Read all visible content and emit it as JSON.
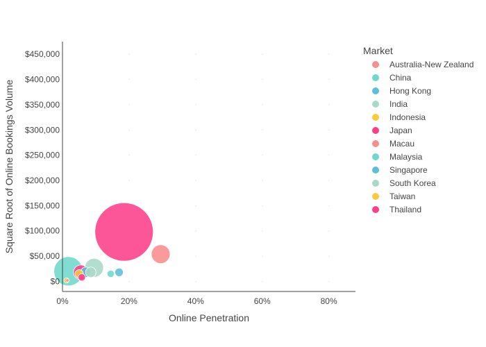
{
  "chart_data": {
    "type": "scatter",
    "subtype": "bubble",
    "title": "",
    "xlabel": "Online Penetration",
    "ylabel": "Square Root of Online Bookings Volume",
    "xlim": [
      0,
      0.88
    ],
    "ylim": [
      -20000,
      475000
    ],
    "x_ticks": [
      0,
      0.2,
      0.4,
      0.6,
      0.8
    ],
    "x_tick_labels": [
      "0%",
      "20%",
      "40%",
      "60%",
      "80%"
    ],
    "y_ticks": [
      0,
      50000,
      100000,
      150000,
      200000,
      250000,
      300000,
      350000,
      400000,
      450000
    ],
    "y_tick_labels": [
      "$0",
      "$50,000",
      "$100,000",
      "$150,000",
      "$200,000",
      "$250,000",
      "$300,000",
      "$350,000",
      "$400,000",
      "$450,000"
    ],
    "grid": true,
    "legend_title": "Market",
    "legend_position": "right",
    "series": [
      {
        "name": "Australia-New Zealand",
        "color": "#f88d8d",
        "points": [
          {
            "x": 0.295,
            "y": 54000,
            "size": 18
          }
        ]
      },
      {
        "name": "China",
        "color": "#6fd8cc",
        "points": [
          {
            "x": 0.018,
            "y": 20000,
            "size": 28
          }
        ]
      },
      {
        "name": "Hong Kong",
        "color": "#5bbfd6",
        "points": [
          {
            "x": 0.17,
            "y": 18000,
            "size": 8
          }
        ]
      },
      {
        "name": "India",
        "color": "#a9d9c8",
        "points": [
          {
            "x": 0.095,
            "y": 27000,
            "size": 18
          }
        ]
      },
      {
        "name": "Indonesia",
        "color": "#fbc93d",
        "points": [
          {
            "x": 0.012,
            "y": 2000,
            "size": 5
          }
        ]
      },
      {
        "name": "Japan",
        "color": "#fd3f8a",
        "points": [
          {
            "x": 0.185,
            "y": 98000,
            "size": 56
          }
        ]
      },
      {
        "name": "Macau",
        "color": "#f88d8d",
        "points": [
          {
            "x": 0.015,
            "y": 2000,
            "size": 3
          }
        ]
      },
      {
        "name": "Malaysia",
        "color": "#6fd8cc",
        "points": [
          {
            "x": 0.145,
            "y": 15000,
            "size": 7
          }
        ]
      },
      {
        "name": "Singapore",
        "color": "#5bbfd6",
        "points": [
          {
            "x": 0.07,
            "y": 18000,
            "size": 10
          }
        ]
      },
      {
        "name": "South Korea",
        "color": "#a9d9c8",
        "points": [
          {
            "x": 0.085,
            "y": 18000,
            "size": 10
          }
        ]
      },
      {
        "name": "Taiwan",
        "color": "#fbc93d",
        "points": [
          {
            "x": 0.05,
            "y": 15000,
            "size": 8
          }
        ]
      },
      {
        "name": "Thailand",
        "color": "#fd3f8a",
        "points": [
          {
            "x": 0.055,
            "y": 18000,
            "size": 14
          },
          {
            "x": 0.058,
            "y": 8000,
            "size": 7
          }
        ]
      }
    ]
  }
}
